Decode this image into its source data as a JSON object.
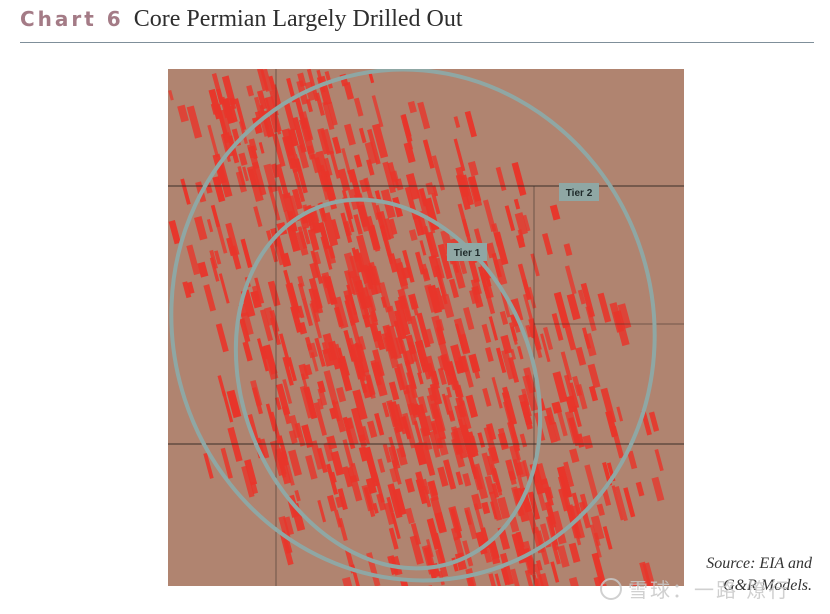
{
  "header": {
    "chart_label": "Chart 6",
    "title": "Core Permian Largely Drilled Out"
  },
  "map": {
    "background_color": "#b08470",
    "well_color": "#e8352a",
    "ring_color": "#8fa7a4",
    "tiers": [
      {
        "label": "Tier 1"
      },
      {
        "label": "Tier 2"
      }
    ]
  },
  "source": {
    "line1": "Source: EIA and",
    "line2": "G&R Models."
  },
  "watermark": {
    "text": "雪球：一路 燎行",
    "icon": "snowball-logo-icon"
  }
}
